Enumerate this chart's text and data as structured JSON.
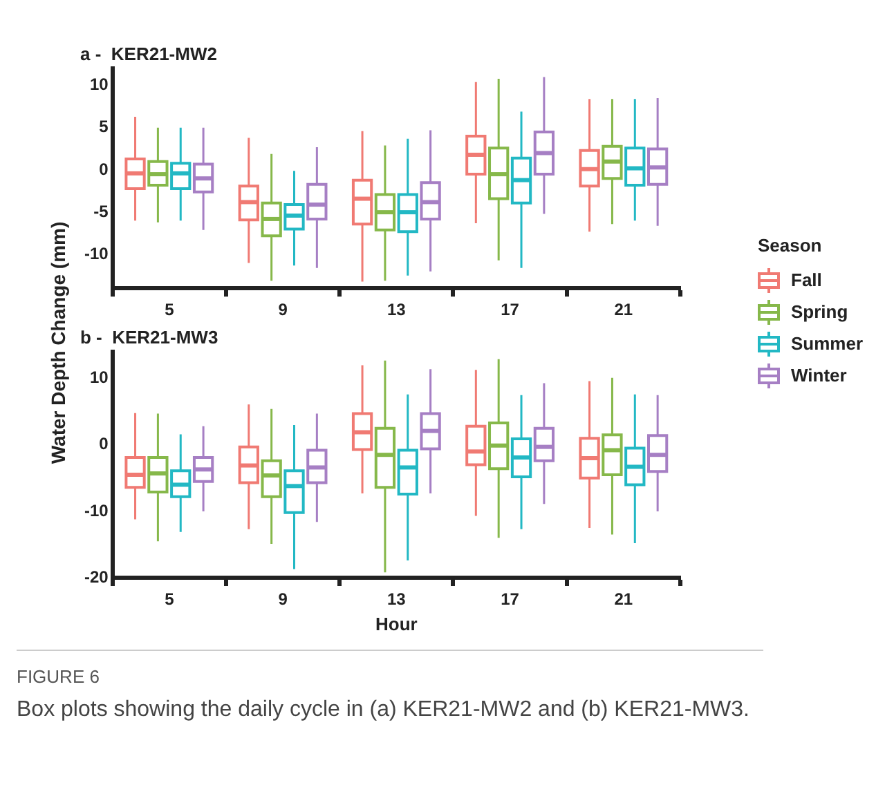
{
  "chart_data": [
    {
      "type": "box",
      "title": "a -  KER21-MW2",
      "ylabel": "Water Depth Change (mm)",
      "categories": [
        "5",
        "9",
        "13",
        "17",
        "21"
      ],
      "ylim": [
        -14,
        12
      ],
      "yticks": [
        -10,
        -5,
        0,
        5,
        10
      ],
      "grid": false,
      "legend": "right",
      "legend_title": "Season",
      "series": [
        {
          "name": "Fall",
          "color": "#f07a73",
          "boxes": [
            {
              "low": -6.0,
              "q1": -2.2,
              "median": -0.4,
              "q3": 1.3,
              "high": 6.3
            },
            {
              "low": -11.0,
              "q1": -5.9,
              "median": -3.8,
              "q3": -1.9,
              "high": 3.8
            },
            {
              "low": -13.2,
              "q1": -6.4,
              "median": -3.4,
              "q3": -1.2,
              "high": 4.6
            },
            {
              "low": -6.3,
              "q1": -0.5,
              "median": 1.8,
              "q3": 4.0,
              "high": 10.4
            },
            {
              "low": -7.3,
              "q1": -1.9,
              "median": 0.1,
              "q3": 2.3,
              "high": 8.4
            }
          ]
        },
        {
          "name": "Spring",
          "color": "#86b84a",
          "boxes": [
            {
              "low": -6.2,
              "q1": -1.8,
              "median": -0.5,
              "q3": 1.0,
              "high": 5.0
            },
            {
              "low": -13.1,
              "q1": -7.8,
              "median": -5.8,
              "q3": -3.9,
              "high": 1.9
            },
            {
              "low": -13.1,
              "q1": -7.1,
              "median": -5.0,
              "q3": -2.9,
              "high": 2.9
            },
            {
              "low": -10.7,
              "q1": -3.4,
              "median": -0.5,
              "q3": 2.6,
              "high": 10.8
            },
            {
              "low": -6.4,
              "q1": -1.0,
              "median": 1.0,
              "q3": 2.8,
              "high": 8.4
            }
          ]
        },
        {
          "name": "Summer",
          "color": "#22b8c4",
          "boxes": [
            {
              "low": -6.0,
              "q1": -2.2,
              "median": -0.4,
              "q3": 0.8,
              "high": 5.0
            },
            {
              "low": -11.3,
              "q1": -7.0,
              "median": -5.4,
              "q3": -4.1,
              "high": -0.1
            },
            {
              "low": -12.5,
              "q1": -7.3,
              "median": -5.0,
              "q3": -2.9,
              "high": 3.7
            },
            {
              "low": -11.6,
              "q1": -3.9,
              "median": -1.2,
              "q3": 1.4,
              "high": 6.9
            },
            {
              "low": -6.0,
              "q1": -1.8,
              "median": 0.2,
              "q3": 2.6,
              "high": 8.4
            }
          ]
        },
        {
          "name": "Winter",
          "color": "#a67fc4",
          "boxes": [
            {
              "low": -7.1,
              "q1": -2.6,
              "median": -1.0,
              "q3": 0.7,
              "high": 5.0
            },
            {
              "low": -11.6,
              "q1": -5.8,
              "median": -4.1,
              "q3": -1.7,
              "high": 2.7
            },
            {
              "low": -12.0,
              "q1": -5.8,
              "median": -3.8,
              "q3": -1.5,
              "high": 4.7
            },
            {
              "low": -5.2,
              "q1": -0.5,
              "median": 2.0,
              "q3": 4.5,
              "high": 11.0
            },
            {
              "low": -6.6,
              "q1": -1.7,
              "median": 0.3,
              "q3": 2.5,
              "high": 8.5
            }
          ]
        }
      ]
    },
    {
      "type": "box",
      "title": "b -  KER21-MW3",
      "xlabel": "Hour",
      "categories": [
        "5",
        "9",
        "13",
        "17",
        "21"
      ],
      "ylim": [
        -20,
        14
      ],
      "yticks": [
        -20,
        -10,
        0,
        10
      ],
      "grid": false,
      "annotations": [
        "FIGURE 6",
        "Box plots showing the daily cycle in (a) KER21-MW2 and (b) KER21-MW3."
      ],
      "series": [
        {
          "color": "#f07a73",
          "boxes": [
            {
              "low": -11.2,
              "q1": -6.4,
              "median": -4.5,
              "q3": -1.9,
              "high": 4.8
            },
            {
              "low": -12.7,
              "q1": -5.7,
              "median": -3.1,
              "q3": -0.3,
              "high": 6.1
            },
            {
              "low": -7.3,
              "q1": -0.7,
              "median": 1.9,
              "q3": 4.7,
              "high": 12.0
            },
            {
              "low": -10.7,
              "q1": -3.0,
              "median": -1.0,
              "q3": 2.8,
              "high": 11.3
            },
            {
              "low": -12.5,
              "q1": -5.0,
              "median": -2.0,
              "q3": 1.0,
              "high": 9.6
            }
          ]
        },
        {
          "color": "#86b84a",
          "boxes": [
            {
              "low": -14.5,
              "q1": -7.1,
              "median": -4.3,
              "q3": -1.9,
              "high": 4.7
            },
            {
              "low": -14.9,
              "q1": -7.8,
              "median": -4.6,
              "q3": -2.4,
              "high": 5.4
            },
            {
              "low": -19.2,
              "q1": -6.4,
              "median": -1.5,
              "q3": 2.5,
              "high": 12.7
            },
            {
              "low": -14.0,
              "q1": -3.6,
              "median": -0.1,
              "q3": 3.3,
              "high": 12.9
            },
            {
              "low": -13.5,
              "q1": -4.5,
              "median": -0.8,
              "q3": 1.5,
              "high": 10.1
            }
          ]
        },
        {
          "color": "#22b8c4",
          "boxes": [
            {
              "low": -13.1,
              "q1": -7.8,
              "median": -6.0,
              "q3": -3.9,
              "high": 1.6
            },
            {
              "low": -18.7,
              "q1": -10.2,
              "median": -6.2,
              "q3": -3.9,
              "high": 3.0
            },
            {
              "low": -17.4,
              "q1": -7.4,
              "median": -3.4,
              "q3": -0.8,
              "high": 7.6
            },
            {
              "low": -12.7,
              "q1": -4.8,
              "median": -1.9,
              "q3": 0.9,
              "high": 7.5
            },
            {
              "low": -14.8,
              "q1": -6.0,
              "median": -3.3,
              "q3": -0.5,
              "high": 7.6
            }
          ]
        },
        {
          "color": "#a67fc4",
          "boxes": [
            {
              "low": -10.0,
              "q1": -5.5,
              "median": -3.7,
              "q3": -1.9,
              "high": 2.8
            },
            {
              "low": -11.6,
              "q1": -5.7,
              "median": -3.4,
              "q3": -0.8,
              "high": 4.7
            },
            {
              "low": -7.3,
              "q1": -0.6,
              "median": 2.1,
              "q3": 4.7,
              "high": 11.4
            },
            {
              "low": -8.9,
              "q1": -2.4,
              "median": -0.3,
              "q3": 2.5,
              "high": 9.3
            },
            {
              "low": -10.0,
              "q1": -4.0,
              "median": -1.5,
              "q3": 1.4,
              "high": 7.5
            }
          ]
        }
      ]
    }
  ]
}
